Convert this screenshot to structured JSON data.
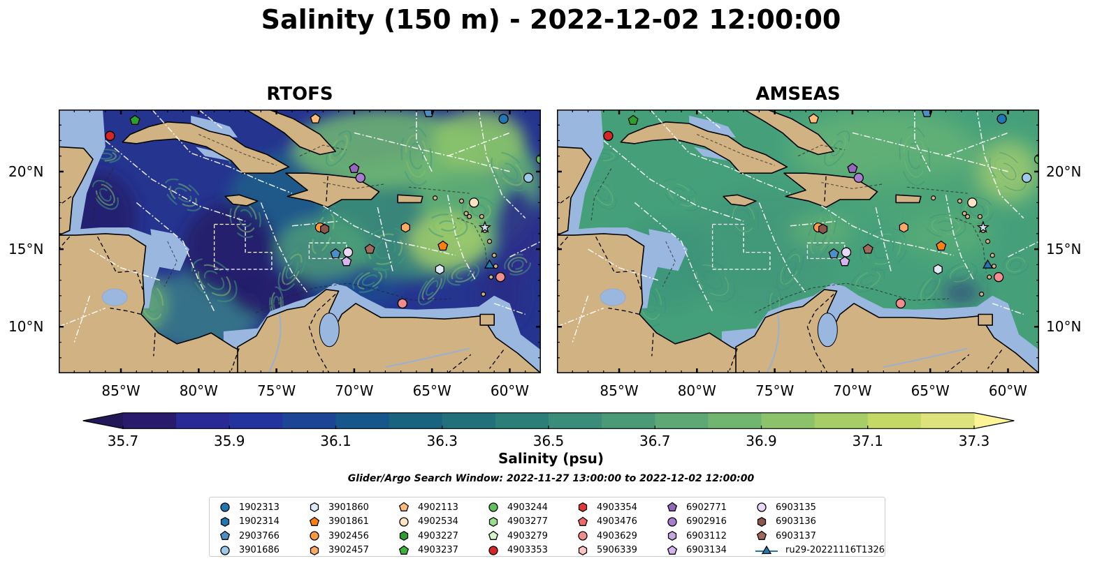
{
  "figure": {
    "suptitle": "Salinity (150 m) - 2022-12-02 12:00:00",
    "panels": [
      {
        "title": "RTOFS",
        "style": "rtofs"
      },
      {
        "title": "AMSEAS",
        "style": "amseas"
      }
    ],
    "lon_ticks": [
      "85°W",
      "80°W",
      "75°W",
      "70°W",
      "65°W",
      "60°W"
    ],
    "lat_ticks_left": [
      "20°N",
      "15°N",
      "10°N"
    ],
    "lat_ticks_right": [
      "20°N",
      "15°N",
      "10°N"
    ],
    "colorbar": {
      "label": "Salinity (psu)",
      "ticks": [
        "35.7",
        "35.9",
        "36.1",
        "36.3",
        "36.5",
        "36.7",
        "36.9",
        "37.1",
        "37.3"
      ],
      "min": 35.7,
      "max": 37.3,
      "colors": [
        "#2a1a6b",
        "#2a2a94",
        "#24349e",
        "#1c4595",
        "#17568a",
        "#196381",
        "#22707c",
        "#2c7f79",
        "#3b8c78",
        "#4b9977",
        "#5da875",
        "#72b571",
        "#8bc26a",
        "#a6cd67",
        "#c3d867",
        "#dde27c"
      ]
    },
    "search_window": "Glider/Argo Search Window: 2022-11-27 13:00:00 to 2022-12-02 12:00:00",
    "legend": [
      {
        "label": "1902313",
        "marker": "circle",
        "color": "#1f77b4"
      },
      {
        "label": "1902314",
        "marker": "hexagon",
        "color": "#1f77b4"
      },
      {
        "label": "2903766",
        "marker": "pentagon",
        "color": "#4a90c8"
      },
      {
        "label": "3901686",
        "marker": "circle",
        "color": "#9ecae9"
      },
      {
        "label": "3901860",
        "marker": "hexagon",
        "color": "#deebf7"
      },
      {
        "label": "3901861",
        "marker": "pentagon",
        "color": "#ff7f0e"
      },
      {
        "label": "3902456",
        "marker": "circle",
        "color": "#ff9a3a"
      },
      {
        "label": "3902457",
        "marker": "hexagon",
        "color": "#ffab62"
      },
      {
        "label": "4902113",
        "marker": "pentagon",
        "color": "#ffbb78"
      },
      {
        "label": "4902534",
        "marker": "circle",
        "color": "#ffe4c4"
      },
      {
        "label": "4903227",
        "marker": "hexagon",
        "color": "#2ca02c"
      },
      {
        "label": "4903237",
        "marker": "pentagon",
        "color": "#3cb43c"
      },
      {
        "label": "4903244",
        "marker": "circle",
        "color": "#5fc25f"
      },
      {
        "label": "4903277",
        "marker": "hexagon",
        "color": "#98df8a"
      },
      {
        "label": "4903279",
        "marker": "pentagon",
        "color": "#d4f5cc"
      },
      {
        "label": "4903353",
        "marker": "circle",
        "color": "#d62728"
      },
      {
        "label": "4903354",
        "marker": "hexagon",
        "color": "#e0393a"
      },
      {
        "label": "4903476",
        "marker": "pentagon",
        "color": "#ee6a6b"
      },
      {
        "label": "4903629",
        "marker": "circle",
        "color": "#f48e8e"
      },
      {
        "label": "5906339",
        "marker": "hexagon",
        "color": "#ffc4c4"
      },
      {
        "label": "6902771",
        "marker": "pentagon",
        "color": "#9467bd"
      },
      {
        "label": "6902916",
        "marker": "circle",
        "color": "#a97cd0"
      },
      {
        "label": "6903112",
        "marker": "hexagon",
        "color": "#c5a6e2"
      },
      {
        "label": "6903134",
        "marker": "pentagon",
        "color": "#d5b5f0"
      },
      {
        "label": "6903135",
        "marker": "circle",
        "color": "#ead8f8"
      },
      {
        "label": "6903136",
        "marker": "hexagon",
        "color": "#8c564b"
      },
      {
        "label": "6903137",
        "marker": "pentagon",
        "color": "#a0685c"
      },
      {
        "label": "ru29-20221116T1326",
        "marker": "triangle-line",
        "color": "#1f77b4"
      }
    ]
  }
}
